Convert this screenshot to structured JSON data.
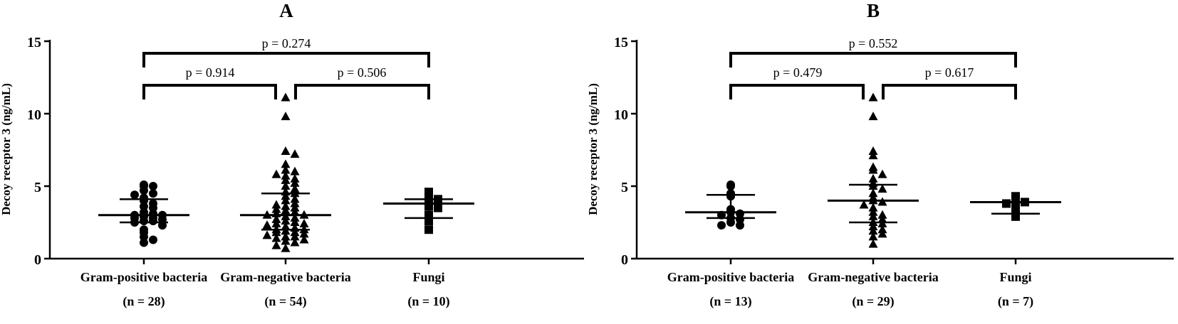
{
  "chart_data": [
    {
      "type": "scatter",
      "panel_label": "A",
      "ylabel": "Decoy receptor 3 (ng/mL)",
      "ylim": [
        0,
        15
      ],
      "yticks": [
        "0",
        "5",
        "10",
        "15"
      ],
      "groups": [
        {
          "name": "Gram-positive bacteria",
          "n_label": "(n = 28)",
          "marker": "circle",
          "median": 3.0,
          "q1": 2.5,
          "q3": 4.1,
          "values": [
            5.1,
            5.0,
            5.0,
            4.7,
            4.5,
            4.4,
            4.2,
            4.0,
            3.8,
            3.6,
            3.5,
            3.2,
            3.1,
            3.0,
            3.0,
            2.9,
            2.8,
            2.8,
            2.7,
            2.6,
            2.6,
            2.5,
            2.3,
            2.0,
            1.8,
            1.5,
            1.3,
            1.1
          ]
        },
        {
          "name": "Gram-negative bacteria",
          "n_label": "(n = 54)",
          "marker": "triangle",
          "median": 3.0,
          "q1": 2.0,
          "q3": 4.5,
          "values": [
            11.1,
            9.8,
            7.4,
            7.2,
            6.5,
            6.1,
            6.0,
            5.8,
            5.7,
            5.5,
            5.4,
            5.2,
            5.0,
            4.8,
            4.6,
            4.5,
            4.3,
            4.1,
            4.0,
            3.8,
            3.7,
            3.6,
            3.5,
            3.4,
            3.3,
            3.2,
            3.1,
            3.0,
            3.0,
            2.9,
            2.8,
            2.7,
            2.6,
            2.5,
            2.4,
            2.4,
            2.3,
            2.2,
            2.1,
            2.0,
            2.0,
            1.9,
            1.8,
            1.8,
            1.7,
            1.6,
            1.5,
            1.5,
            1.4,
            1.3,
            1.2,
            1.1,
            0.9,
            0.7
          ]
        },
        {
          "name": "Fungi",
          "n_label": "(n = 10)",
          "marker": "square",
          "median": 3.8,
          "q1": 2.8,
          "q3": 4.1,
          "values": [
            4.6,
            4.2,
            4.1,
            4.0,
            3.8,
            3.6,
            3.5,
            3.0,
            2.6,
            2.0
          ]
        }
      ],
      "comparisons": [
        {
          "from": 0,
          "to": 2,
          "label": "p = 0.274",
          "level": 2
        },
        {
          "from": 0,
          "to": 1,
          "label": "p = 0.914",
          "level": 1
        },
        {
          "from": 1,
          "to": 2,
          "label": "p = 0.506",
          "level": 1
        }
      ]
    },
    {
      "type": "scatter",
      "panel_label": "B",
      "ylabel": "Decoy receptor 3 (ng/mL)",
      "ylim": [
        0,
        15
      ],
      "yticks": [
        "0",
        "5",
        "10",
        "15"
      ],
      "groups": [
        {
          "name": "Gram-positive bacteria",
          "n_label": "(n = 13)",
          "marker": "circle",
          "median": 3.2,
          "q1": 2.8,
          "q3": 4.4,
          "values": [
            5.1,
            5.0,
            4.5,
            4.3,
            3.4,
            3.2,
            3.1,
            3.0,
            2.8,
            2.7,
            2.5,
            2.3,
            2.3
          ]
        },
        {
          "name": "Gram-negative bacteria",
          "n_label": "(n = 29)",
          "marker": "triangle",
          "median": 4.0,
          "q1": 2.5,
          "q3": 5.1,
          "values": [
            11.1,
            9.8,
            7.4,
            7.1,
            6.3,
            6.1,
            5.8,
            5.5,
            5.2,
            5.0,
            4.8,
            4.5,
            4.2,
            4.0,
            3.9,
            3.7,
            3.5,
            3.2,
            3.0,
            2.9,
            2.7,
            2.5,
            2.4,
            2.2,
            2.0,
            1.9,
            1.7,
            1.5,
            1.0
          ]
        },
        {
          "name": "Fungi",
          "n_label": "(n = 7)",
          "marker": "square",
          "median": 3.9,
          "q1": 3.1,
          "q3": 3.9,
          "values": [
            4.3,
            4.0,
            3.9,
            3.8,
            3.5,
            3.1,
            2.9
          ]
        }
      ],
      "comparisons": [
        {
          "from": 0,
          "to": 2,
          "label": "p = 0.552",
          "level": 2
        },
        {
          "from": 0,
          "to": 1,
          "label": "p = 0.479",
          "level": 1
        },
        {
          "from": 1,
          "to": 2,
          "label": "p = 0.617",
          "level": 1
        }
      ]
    }
  ]
}
